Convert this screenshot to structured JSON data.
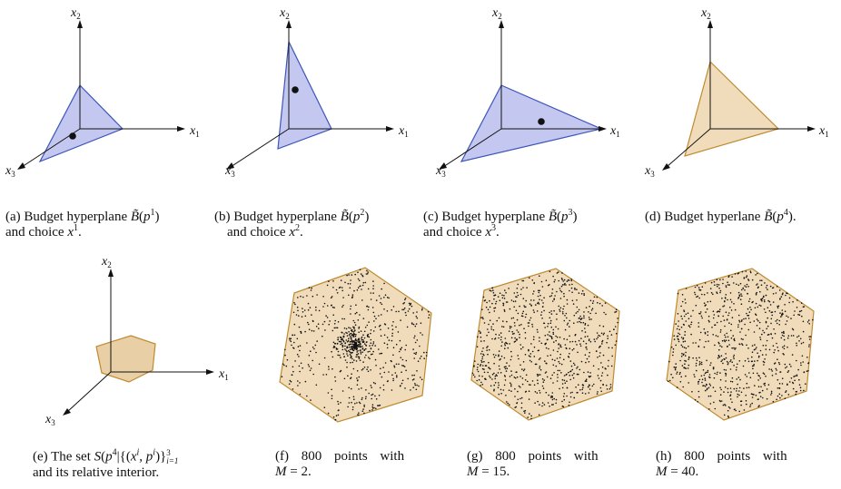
{
  "axes": {
    "x1": "x",
    "x1_sub": "1",
    "x2": "x",
    "x2_sub": "2",
    "x3": "x",
    "x3_sub": "3"
  },
  "colors": {
    "blue_fill": "#c4c7ef",
    "blue_edge": "#3b55b8",
    "tan_fill": "#f0dcbb",
    "tan_edge": "#c08a2e",
    "point": "#111111"
  },
  "captions": {
    "a": {
      "pre": "(a) Budget hyperplane ",
      "sym": "B̃",
      "mid": "(",
      "p": "p",
      "sup": "1",
      "post": ")",
      "line2_pre": "and choice ",
      "x": "x",
      "x_sup": "1",
      "end": "."
    },
    "b": {
      "pre": "(b) Budget hyperplane ",
      "sym": "B̃",
      "mid": "(",
      "p": "p",
      "sup": "2",
      "post": ")",
      "line2_pre": "and choice ",
      "x": "x",
      "x_sup": "2",
      "end": "."
    },
    "c": {
      "pre": "(c) Budget hyperplane ",
      "sym": "B̃",
      "mid": "(",
      "p": "p",
      "sup": "3",
      "post": ")",
      "line2_pre": "and choice ",
      "x": "x",
      "x_sup": "3",
      "end": "."
    },
    "d": {
      "pre": "(d) Budget hyperlane ",
      "sym": "B̃",
      "mid": "(",
      "p": "p",
      "sup": "4",
      "post": ")."
    },
    "e": {
      "pre": "(e) The set ",
      "S": "S",
      "open": "(",
      "p": "p",
      "sup": "4",
      "bar": "|{(",
      "x": "x",
      "xsup": "i",
      "comma": ", ",
      "p2": "p",
      "psup": "i",
      "close": ")}",
      "sub": "i=1",
      "sup3": "3",
      "line2": "and its relative interior."
    },
    "f": {
      "line1": "(f) 800 points with",
      "M": "M",
      "eq": " = 2."
    },
    "g": {
      "line1": "(g) 800 points with",
      "M": "M",
      "eq": " = 15."
    },
    "h": {
      "line1": "(h) 800 points with",
      "M": "M",
      "eq": " = 40."
    }
  },
  "scatter": {
    "f": {
      "points": 800,
      "M": 2
    },
    "g": {
      "points": 800,
      "M": 15
    },
    "h": {
      "points": 800,
      "M": 40
    }
  }
}
